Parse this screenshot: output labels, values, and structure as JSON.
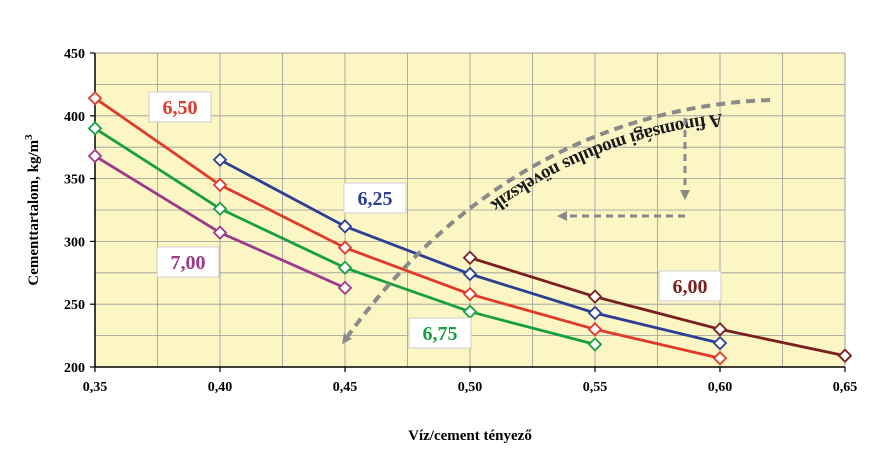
{
  "chart_data": {
    "type": "line",
    "title": "",
    "xlabel": "Víz/cement tényező",
    "ylabel": "Cementtartalom, kg/m",
    "ylabel_superscript": "3",
    "xlim": [
      0.35,
      0.65
    ],
    "ylim": [
      200,
      450
    ],
    "x_ticks": [
      "0,35",
      "0,40",
      "0,45",
      "0,50",
      "0,55",
      "0,60",
      "0,65"
    ],
    "y_ticks": [
      "200",
      "250",
      "300",
      "350",
      "400",
      "450"
    ],
    "grid": true,
    "plot_background": "#fbf6c4",
    "series": [
      {
        "name": "6,50",
        "color": "#e03a2b",
        "points": [
          [
            0.35,
            414
          ],
          [
            0.4,
            345
          ],
          [
            0.45,
            295
          ],
          [
            0.5,
            258
          ],
          [
            0.55,
            230
          ],
          [
            0.6,
            207
          ]
        ]
      },
      {
        "name": "6,75",
        "color": "#18a040",
        "points": [
          [
            0.35,
            390
          ],
          [
            0.4,
            326
          ],
          [
            0.45,
            279
          ],
          [
            0.5,
            244
          ],
          [
            0.55,
            218
          ]
        ]
      },
      {
        "name": "7,00",
        "color": "#9b3a8a",
        "points": [
          [
            0.35,
            368
          ],
          [
            0.4,
            307
          ],
          [
            0.45,
            263
          ]
        ]
      },
      {
        "name": "6,25",
        "color": "#2c3f92",
        "points": [
          [
            0.4,
            365
          ],
          [
            0.45,
            312
          ],
          [
            0.5,
            274
          ],
          [
            0.55,
            243
          ],
          [
            0.6,
            219
          ]
        ]
      },
      {
        "name": "6,00",
        "color": "#7a1f1f",
        "points": [
          [
            0.5,
            287
          ],
          [
            0.55,
            256
          ],
          [
            0.6,
            230
          ],
          [
            0.65,
            209
          ]
        ]
      }
    ],
    "annotations": [
      {
        "text": "A finomsági modulus növekszik"
      }
    ]
  }
}
